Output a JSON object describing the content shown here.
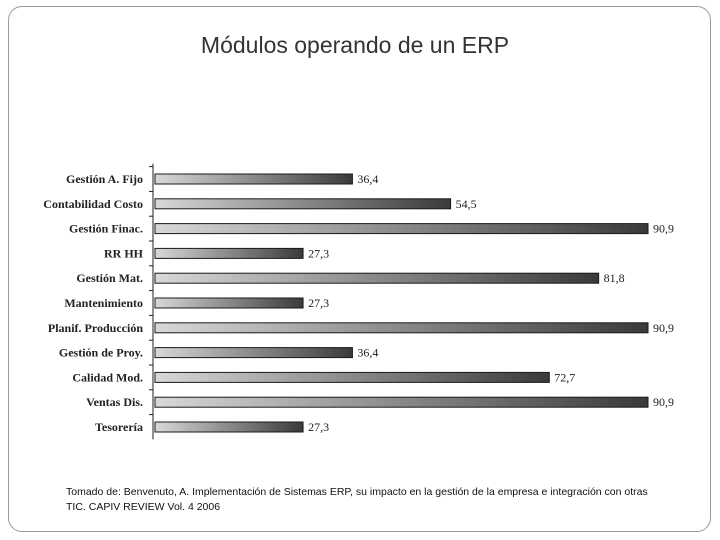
{
  "slide": {
    "title": "Módulos operando de un ERP",
    "source": "Tomado de: Benvenuto, A. Implementación de Sistemas ERP, su impacto en la gestión de la empresa e integración con otras TIC. CAPIV REVIEW Vol. 4 2006"
  },
  "chart_data": {
    "type": "bar",
    "orientation": "horizontal",
    "title": "",
    "xlabel": "",
    "ylabel": "",
    "categories": [
      "Gestión A. Fijo",
      "Contabilidad Costo",
      "Gestión Finac.",
      "RR HH",
      "Gestión Mat.",
      "Mantenimiento",
      "Planif. Producción",
      "Gestión de Proy.",
      "Calidad Mod.",
      "Ventas Dis.",
      "Tesorería"
    ],
    "values": [
      36.4,
      54.5,
      90.9,
      27.3,
      81.8,
      27.3,
      90.9,
      36.4,
      72.7,
      90.9,
      27.3
    ],
    "value_labels": [
      "36,4",
      "54,5",
      "90,9",
      "27,3",
      "81,8",
      "27,3",
      "90,9",
      "36,4",
      "72,7",
      "90,9",
      "27,3"
    ],
    "xlim": [
      0,
      90.9
    ],
    "grid": false,
    "bar_fill": "gradient light-gray to dark-gray",
    "colors": {
      "bar_start": "#d8d8d8",
      "bar_end": "#3a3a3a",
      "outline": "#1a1a1a"
    }
  }
}
